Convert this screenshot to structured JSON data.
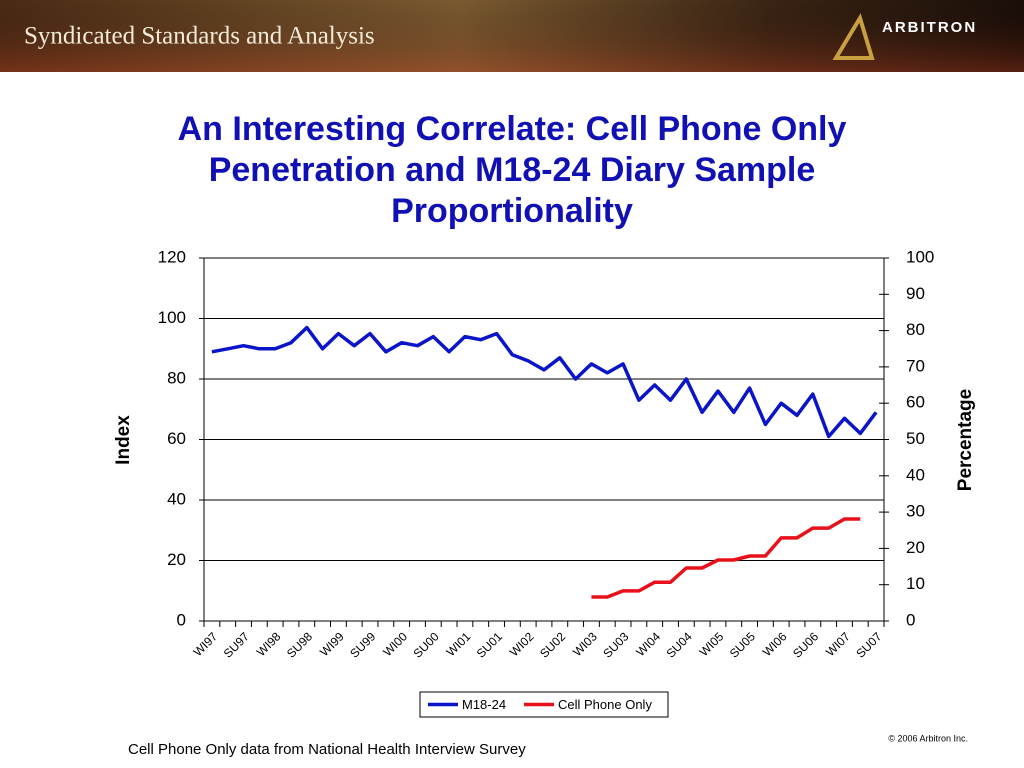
{
  "header": {
    "title": "Syndicated Standards and Analysis",
    "logo": "ARBITRON"
  },
  "chart_data": {
    "type": "line",
    "title": [
      "An Interesting Correlate: Cell Phone Only",
      "Penetration and M18-24 Diary Sample",
      "Proportionality"
    ],
    "y_label": "Index",
    "y2_label": "Percentage",
    "categories": [
      "WI97",
      null,
      "SU97",
      null,
      "WI98",
      null,
      "SU98",
      null,
      "WI99",
      null,
      "SU99",
      null,
      "WI00",
      null,
      "SU00",
      null,
      "WI01",
      null,
      "SU01",
      null,
      "WI02",
      null,
      "SU02",
      null,
      "WI03",
      null,
      "SU03",
      null,
      "WI04",
      null,
      "SU04",
      null,
      "WI05",
      null,
      "SU05",
      null,
      "WI06",
      null,
      "SU06",
      null,
      "WI07",
      null,
      "SU07"
    ],
    "series": [
      {
        "name": "M18-24",
        "color": "#0a14c8",
        "axis": "y",
        "values": [
          89,
          90,
          91,
          90,
          90,
          92,
          97,
          90,
          95,
          91,
          95,
          89,
          92,
          91,
          94,
          89,
          94,
          93,
          95,
          88,
          86,
          83,
          87,
          80,
          85,
          82,
          85,
          73,
          78,
          73,
          80,
          69,
          76,
          69,
          77,
          65,
          72,
          68,
          75,
          61,
          67,
          62,
          69
        ]
      },
      {
        "name": "Cell Phone Only",
        "color": "#e8101a",
        "axis": "y2",
        "values": [
          null,
          null,
          null,
          null,
          null,
          null,
          null,
          null,
          null,
          null,
          null,
          null,
          null,
          null,
          null,
          null,
          null,
          null,
          null,
          null,
          null,
          null,
          null,
          null,
          6.6,
          6.6,
          8.3,
          8.3,
          10.7,
          10.7,
          14.6,
          14.6,
          16.8,
          16.8,
          17.9,
          17.9,
          22.9,
          22.9,
          25.6,
          25.6,
          28.1,
          28.1,
          null
        ]
      }
    ],
    "ylim": [
      0,
      120
    ],
    "yticks": [
      0,
      20,
      40,
      60,
      80,
      100,
      120
    ],
    "y2lim": [
      0,
      100
    ],
    "y2ticks": [
      0,
      10,
      20,
      30,
      40,
      50,
      60,
      70,
      80,
      90,
      100
    ],
    "grid": true,
    "legend": "bottom"
  },
  "footnote": "Cell Phone Only data from National Health Interview Survey",
  "copyright": "© 2006 Arbitron Inc."
}
